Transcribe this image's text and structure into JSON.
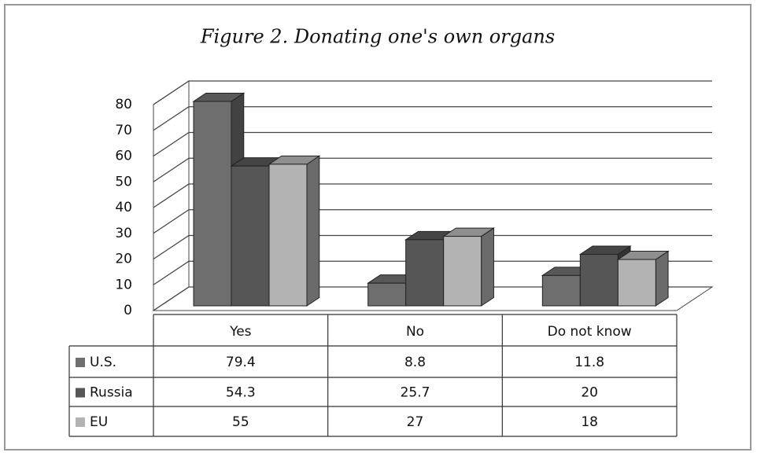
{
  "chart_data": {
    "type": "bar3d",
    "title": "Figure 2. Donating one's own organs",
    "categories": [
      "Yes",
      "No",
      "Do not know"
    ],
    "series": [
      {
        "name": "U.S.",
        "color": "#6e6e6e",
        "values": [
          79.4,
          8.8,
          11.8
        ]
      },
      {
        "name": "Russia",
        "color": "#565656",
        "values": [
          54.3,
          25.7,
          20
        ]
      },
      {
        "name": "EU",
        "color": "#b3b3b3",
        "values": [
          55,
          27,
          18
        ]
      }
    ],
    "ylim": [
      0,
      80
    ],
    "yticks": [
      0,
      10,
      20,
      30,
      40,
      50,
      60,
      70,
      80
    ],
    "grid": true,
    "data_table": true
  }
}
